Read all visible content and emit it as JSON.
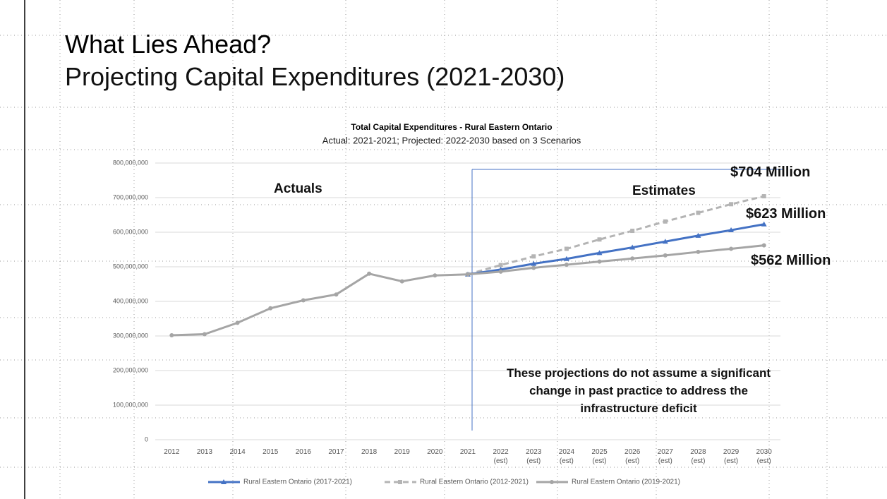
{
  "header": {
    "title": "What Lies Ahead?",
    "subtitle": "Projecting Capital Expenditures (2021-2030)"
  },
  "chart_data": {
    "type": "line",
    "title": "Total Capital Expenditures - Rural Eastern Ontario",
    "subtitle": "Actual: 2021-2021; Projected: 2022-2030 based on 3 Scenarios",
    "categories": [
      "2012",
      "2013",
      "2014",
      "2015",
      "2016",
      "2017",
      "2018",
      "2019",
      "2020",
      "2021",
      "2022 (est)",
      "2023 (est)",
      "2024 (est)",
      "2025 (est)",
      "2026 (est)",
      "2027 (est)",
      "2028 (est)",
      "2029 (est)",
      "2030 (est)"
    ],
    "series": [
      {
        "name": "Rural Eastern Ontario (2017-2021)",
        "color": "#4472c4",
        "line_style": "solid",
        "marker": "triangle",
        "values": [
          null,
          null,
          null,
          null,
          null,
          null,
          null,
          null,
          null,
          478000000,
          492000000,
          509000000,
          523000000,
          540000000,
          556000000,
          573000000,
          590000000,
          606000000,
          623000000
        ]
      },
      {
        "name": "Rural Eastern Ontario (2012-2021)",
        "color": "#b4b4b4",
        "line_style": "dashed",
        "marker": "square",
        "values": [
          null,
          null,
          null,
          null,
          null,
          null,
          null,
          null,
          null,
          478000000,
          505000000,
          530000000,
          552000000,
          579000000,
          604000000,
          631000000,
          656000000,
          681000000,
          704000000
        ]
      },
      {
        "name": "Rural Eastern Ontario (2019-2021)",
        "color": "#a5a5a5",
        "line_style": "solid",
        "marker": "circle",
        "values": [
          302000000,
          305000000,
          338000000,
          380000000,
          403000000,
          420000000,
          480000000,
          458000000,
          475000000,
          478000000,
          486000000,
          497000000,
          506000000,
          515000000,
          524000000,
          533000000,
          543000000,
          552000000,
          562000000
        ]
      }
    ],
    "ylim": [
      0,
      800000000
    ],
    "yticks": [
      0,
      {
        "value": 100000000,
        "label": "100,000,000"
      },
      {
        "value": 200000000,
        "label": "200,000,000"
      },
      {
        "value": 300000000,
        "label": "300,000,000"
      },
      {
        "value": 400000000,
        "label": "400,000,000"
      },
      {
        "value": 500000000,
        "label": "500,000,000"
      },
      {
        "value": 600000000,
        "label": "600,000,000"
      },
      {
        "value": 700000000,
        "label": "700,000,000"
      },
      {
        "value": 800000000,
        "label": "800,000,000"
      }
    ],
    "grid": true,
    "legend": "bottom",
    "annotations": [
      "Actuals",
      "Estimates",
      "$704 Million",
      "$623 Million",
      "$562 Million",
      "These projections do not assume a significant change in past practice to address the infrastructure deficit"
    ]
  }
}
